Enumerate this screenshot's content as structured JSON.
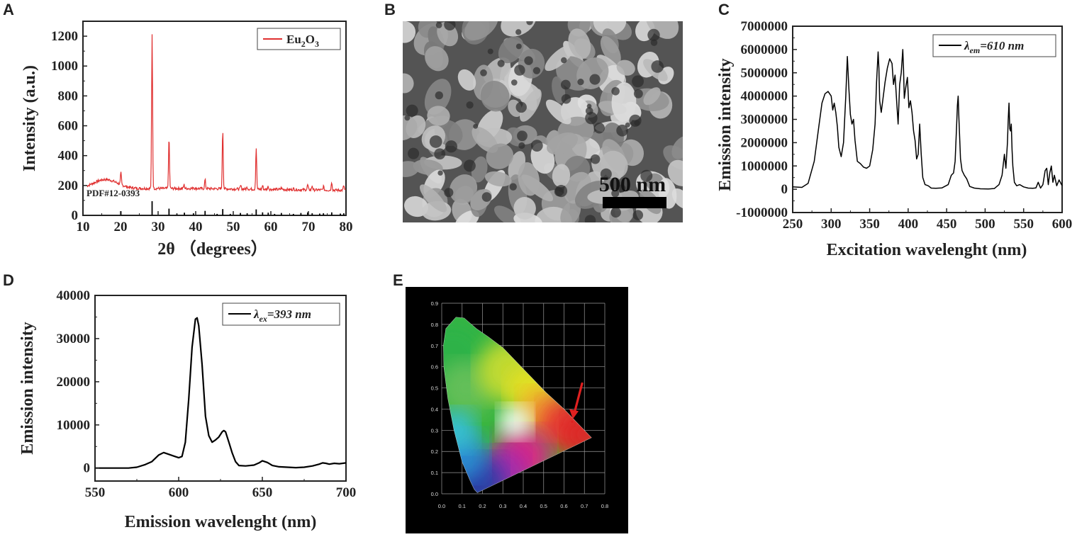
{
  "panels": {
    "A": {
      "label": "A"
    },
    "B": {
      "label": "B",
      "scale_bar": "500 nm"
    },
    "C": {
      "label": "C"
    },
    "D": {
      "label": "D"
    },
    "E": {
      "label": "E"
    }
  },
  "chart_data": [
    {
      "panel": "A",
      "type": "line",
      "xlabel": "2θ （degrees）",
      "ylabel": "Intensity (a.u.)",
      "xlim": [
        10,
        80
      ],
      "ylim": [
        0,
        1300
      ],
      "xticks": [
        10,
        20,
        30,
        40,
        50,
        60,
        70,
        80
      ],
      "yticks": [
        0,
        200,
        400,
        600,
        800,
        1000,
        1200
      ],
      "legend": {
        "position": "top-right"
      },
      "color": "#e03030",
      "series": [
        {
          "name": "Eu2O3",
          "name_main": "Eu",
          "name_sub1": "2",
          "name_mid": "O",
          "name_sub2": "3",
          "peaks": [
            [
              20.1,
              285
            ],
            [
              28.4,
              1210
            ],
            [
              32.9,
              520
            ],
            [
              36.9,
              205
            ],
            [
              39.4,
              190
            ],
            [
              42.5,
              240
            ],
            [
              47.2,
              575
            ],
            [
              52.0,
              200
            ],
            [
              53.7,
              190
            ],
            [
              56.1,
              455
            ],
            [
              57.8,
              200
            ],
            [
              59.3,
              195
            ],
            [
              62.8,
              185
            ],
            [
              66.0,
              180
            ],
            [
              69.8,
              205
            ],
            [
              71.0,
              200
            ],
            [
              74.0,
              195
            ],
            [
              76.2,
              225
            ],
            [
              79.4,
              200
            ]
          ]
        }
      ],
      "reference": {
        "label": "PDF#12-0393",
        "lines": [
          [
            20.1,
            28
          ],
          [
            28.4,
            95
          ],
          [
            32.9,
            45
          ],
          [
            35.0,
            12
          ],
          [
            37.0,
            18
          ],
          [
            39.4,
            14
          ],
          [
            42.5,
            30
          ],
          [
            45.7,
            10
          ],
          [
            47.2,
            42
          ],
          [
            49.2,
            10
          ],
          [
            51.9,
            16
          ],
          [
            53.7,
            14
          ],
          [
            56.1,
            40
          ],
          [
            57.8,
            20
          ],
          [
            59.3,
            18
          ],
          [
            61.0,
            10
          ],
          [
            62.8,
            16
          ],
          [
            66.0,
            10
          ],
          [
            68.0,
            16
          ],
          [
            69.8,
            20
          ],
          [
            71.0,
            14
          ],
          [
            73.0,
            12
          ],
          [
            74.0,
            14
          ],
          [
            76.2,
            20
          ],
          [
            78.5,
            12
          ],
          [
            79.4,
            14
          ]
        ]
      }
    },
    {
      "panel": "C",
      "type": "line",
      "xlabel": "Excitation wavelenght (nm)",
      "ylabel": "Emission intensity",
      "xlim": [
        250,
        600
      ],
      "ylim": [
        -1000000,
        7000000
      ],
      "xticks": [
        250,
        300,
        350,
        400,
        450,
        500,
        550,
        600
      ],
      "yticks": [
        -1000000,
        0,
        1000000,
        2000000,
        3000000,
        4000000,
        5000000,
        6000000,
        7000000
      ],
      "legend": {
        "position": "top-right",
        "lambda": "λ",
        "sub": "em",
        "rest": "=610 nm"
      },
      "series": [
        {
          "name": "λem=610 nm",
          "x": [
            250,
            262,
            270,
            278,
            284,
            288,
            292,
            296,
            300,
            302,
            304,
            306,
            308,
            310,
            313,
            316,
            319,
            321,
            323,
            325,
            327,
            329,
            331,
            334,
            338,
            342,
            346,
            350,
            354,
            357,
            359,
            361,
            362,
            363,
            365,
            367,
            370,
            373,
            376,
            379,
            381,
            383,
            385,
            387,
            389,
            391,
            393,
            394,
            395,
            397,
            399,
            401,
            403,
            405,
            407,
            409,
            411,
            413,
            415,
            417,
            419,
            422,
            426,
            430,
            436,
            444,
            452,
            456,
            459,
            461,
            463,
            464,
            465,
            466,
            468,
            470,
            473,
            476,
            480,
            486,
            494,
            504,
            512,
            518,
            522,
            525,
            527,
            529,
            530,
            531,
            532,
            533,
            534,
            535,
            536,
            538,
            541,
            545,
            550,
            556,
            562,
            566,
            569,
            572,
            575,
            578,
            580,
            582,
            584,
            586,
            588,
            590,
            593,
            596,
            600
          ],
          "y": [
            100000,
            80000,
            250000,
            1200000,
            2700000,
            3700000,
            4100000,
            4200000,
            4000000,
            3400000,
            3700000,
            3300000,
            2700000,
            1800000,
            1400000,
            2000000,
            4000000,
            5700000,
            4300000,
            3200000,
            2800000,
            3000000,
            2100000,
            1200000,
            1100000,
            950000,
            900000,
            1000000,
            1700000,
            2800000,
            4600000,
            5900000,
            5200000,
            3800000,
            3300000,
            3800000,
            4600000,
            5200000,
            5600000,
            5400000,
            4500000,
            4900000,
            3800000,
            2800000,
            4500000,
            5000000,
            6000000,
            5200000,
            3900000,
            4400000,
            4800000,
            3500000,
            3800000,
            3300000,
            2500000,
            2100000,
            1300000,
            1500000,
            2800000,
            1500000,
            500000,
            200000,
            150000,
            50000,
            40000,
            60000,
            200000,
            600000,
            700000,
            1200000,
            2800000,
            3600000,
            4000000,
            3000000,
            1300000,
            800000,
            600000,
            450000,
            120000,
            50000,
            20000,
            10000,
            30000,
            200000,
            600000,
            1500000,
            900000,
            2000000,
            3000000,
            3700000,
            2600000,
            2500000,
            2800000,
            1700000,
            1000000,
            300000,
            150000,
            200000,
            100000,
            50000,
            40000,
            60000,
            300000,
            50000,
            200000,
            800000,
            900000,
            200000,
            700000,
            1000000,
            300000,
            600000,
            150000,
            400000,
            150000
          ]
        }
      ]
    },
    {
      "panel": "D",
      "type": "line",
      "xlabel": "Emission wavelenght (nm)",
      "ylabel": "Emission intensity",
      "xlim": [
        550,
        700
      ],
      "ylim": [
        -3000,
        40000
      ],
      "xticks": [
        550,
        600,
        650,
        700
      ],
      "yticks": [
        0,
        10000,
        20000,
        30000,
        40000
      ],
      "legend": {
        "position": "top-right",
        "lambda": "λ",
        "sub": "ex",
        "rest": "=393 nm"
      },
      "series": [
        {
          "name": "λex=393 nm",
          "x": [
            550,
            560,
            570,
            575,
            580,
            584,
            588,
            591,
            594,
            597,
            600,
            602,
            604,
            606,
            608,
            610,
            611,
            612,
            614,
            616,
            618,
            620,
            622,
            624,
            626,
            627,
            628,
            630,
            632,
            634,
            636,
            640,
            645,
            648,
            650,
            653,
            656,
            660,
            665,
            670,
            675,
            680,
            684,
            686,
            688,
            690,
            693,
            696,
            700
          ],
          "y": [
            0,
            0,
            0,
            200,
            800,
            1500,
            3000,
            3600,
            3200,
            2800,
            2400,
            2700,
            6000,
            16000,
            28000,
            34500,
            34800,
            33000,
            24000,
            12000,
            7500,
            6000,
            6500,
            7200,
            8400,
            8700,
            8400,
            6000,
            3500,
            1500,
            600,
            500,
            700,
            1200,
            1700,
            1300,
            600,
            300,
            200,
            100,
            200,
            500,
            900,
            1200,
            1100,
            900,
            1100,
            1000,
            1200
          ]
        }
      ]
    },
    {
      "panel": "E",
      "type": "scatter",
      "xlim": [
        0.0,
        0.8
      ],
      "ylim": [
        0.0,
        0.9
      ],
      "xticks": [
        "0.0",
        "0.1",
        "0.2",
        "0.3",
        "0.4",
        "0.5",
        "0.6",
        "0.7",
        "0.8"
      ],
      "yticks": [
        "0.0",
        "0.1",
        "0.2",
        "0.3",
        "0.4",
        "0.5",
        "0.6",
        "0.7",
        "0.8",
        "0.9"
      ],
      "grid": true,
      "locus": [
        [
          0.175,
          0.005
        ],
        [
          0.16,
          0.02
        ],
        [
          0.14,
          0.06
        ],
        [
          0.1,
          0.15
        ],
        [
          0.06,
          0.3
        ],
        [
          0.03,
          0.45
        ],
        [
          0.01,
          0.6
        ],
        [
          0.008,
          0.7
        ],
        [
          0.02,
          0.78
        ],
        [
          0.07,
          0.834
        ],
        [
          0.11,
          0.83
        ],
        [
          0.17,
          0.78
        ],
        [
          0.23,
          0.74
        ],
        [
          0.3,
          0.69
        ],
        [
          0.37,
          0.62
        ],
        [
          0.44,
          0.55
        ],
        [
          0.51,
          0.48
        ],
        [
          0.6,
          0.4
        ],
        [
          0.68,
          0.32
        ],
        [
          0.735,
          0.265
        ],
        [
          0.175,
          0.005
        ]
      ],
      "marker": {
        "x": 0.64,
        "y": 0.34,
        "color": "#e02020"
      }
    }
  ]
}
